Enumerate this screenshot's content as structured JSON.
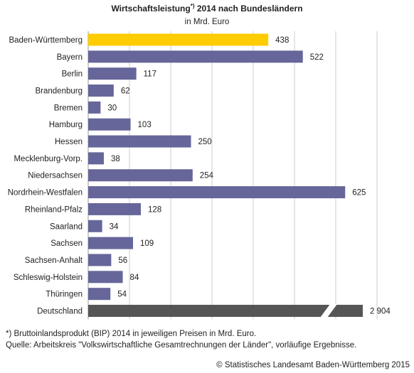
{
  "chart_data": {
    "type": "bar",
    "orientation": "horizontal",
    "title": "Wirtschaftsleistung",
    "title_marker": "*)",
    "title_suffix": "2014 nach Bundesländern",
    "subtitle": "in Mrd. Euro",
    "categories": [
      "Baden-Württemberg",
      "Bayern",
      "Berlin",
      "Brandenburg",
      "Bremen",
      "Hamburg",
      "Hessen",
      "Mecklenburg-Vorp.",
      "Niedersachsen",
      "Nordrhein-Westfalen",
      "Rheinland-Pfalz",
      "Saarland",
      "Sachsen",
      "Sachsen-Anhalt",
      "Schleswig-Holstein",
      "Thüringen",
      "Deutschland"
    ],
    "values": [
      438,
      522,
      117,
      62,
      30,
      103,
      250,
      38,
      254,
      625,
      128,
      34,
      109,
      56,
      84,
      54,
      2904
    ],
    "value_labels": [
      "438",
      "522",
      "117",
      "62",
      "30",
      "103",
      "250",
      "38",
      "254",
      "625",
      "128",
      "34",
      "109",
      "56",
      "84",
      "54",
      "2 904"
    ],
    "axis_break_category": "Deutschland",
    "grid": true,
    "colors": {
      "highlight": "#ffcc00",
      "default": "#66669a",
      "total": "#555555",
      "grid": "#cccccc"
    }
  },
  "footnotes": [
    "*) Bruttoinlandsprodukt (BIP) 2014 in jeweiligen Preisen in Mrd. Euro.",
    "Quelle: Arbeitskreis \"Volkswirtschaftliche Gesamtrechnungen der Länder\", vorläufige Ergebnisse."
  ],
  "copyright": "© Statistisches Landesamt Baden-Württemberg 2015"
}
